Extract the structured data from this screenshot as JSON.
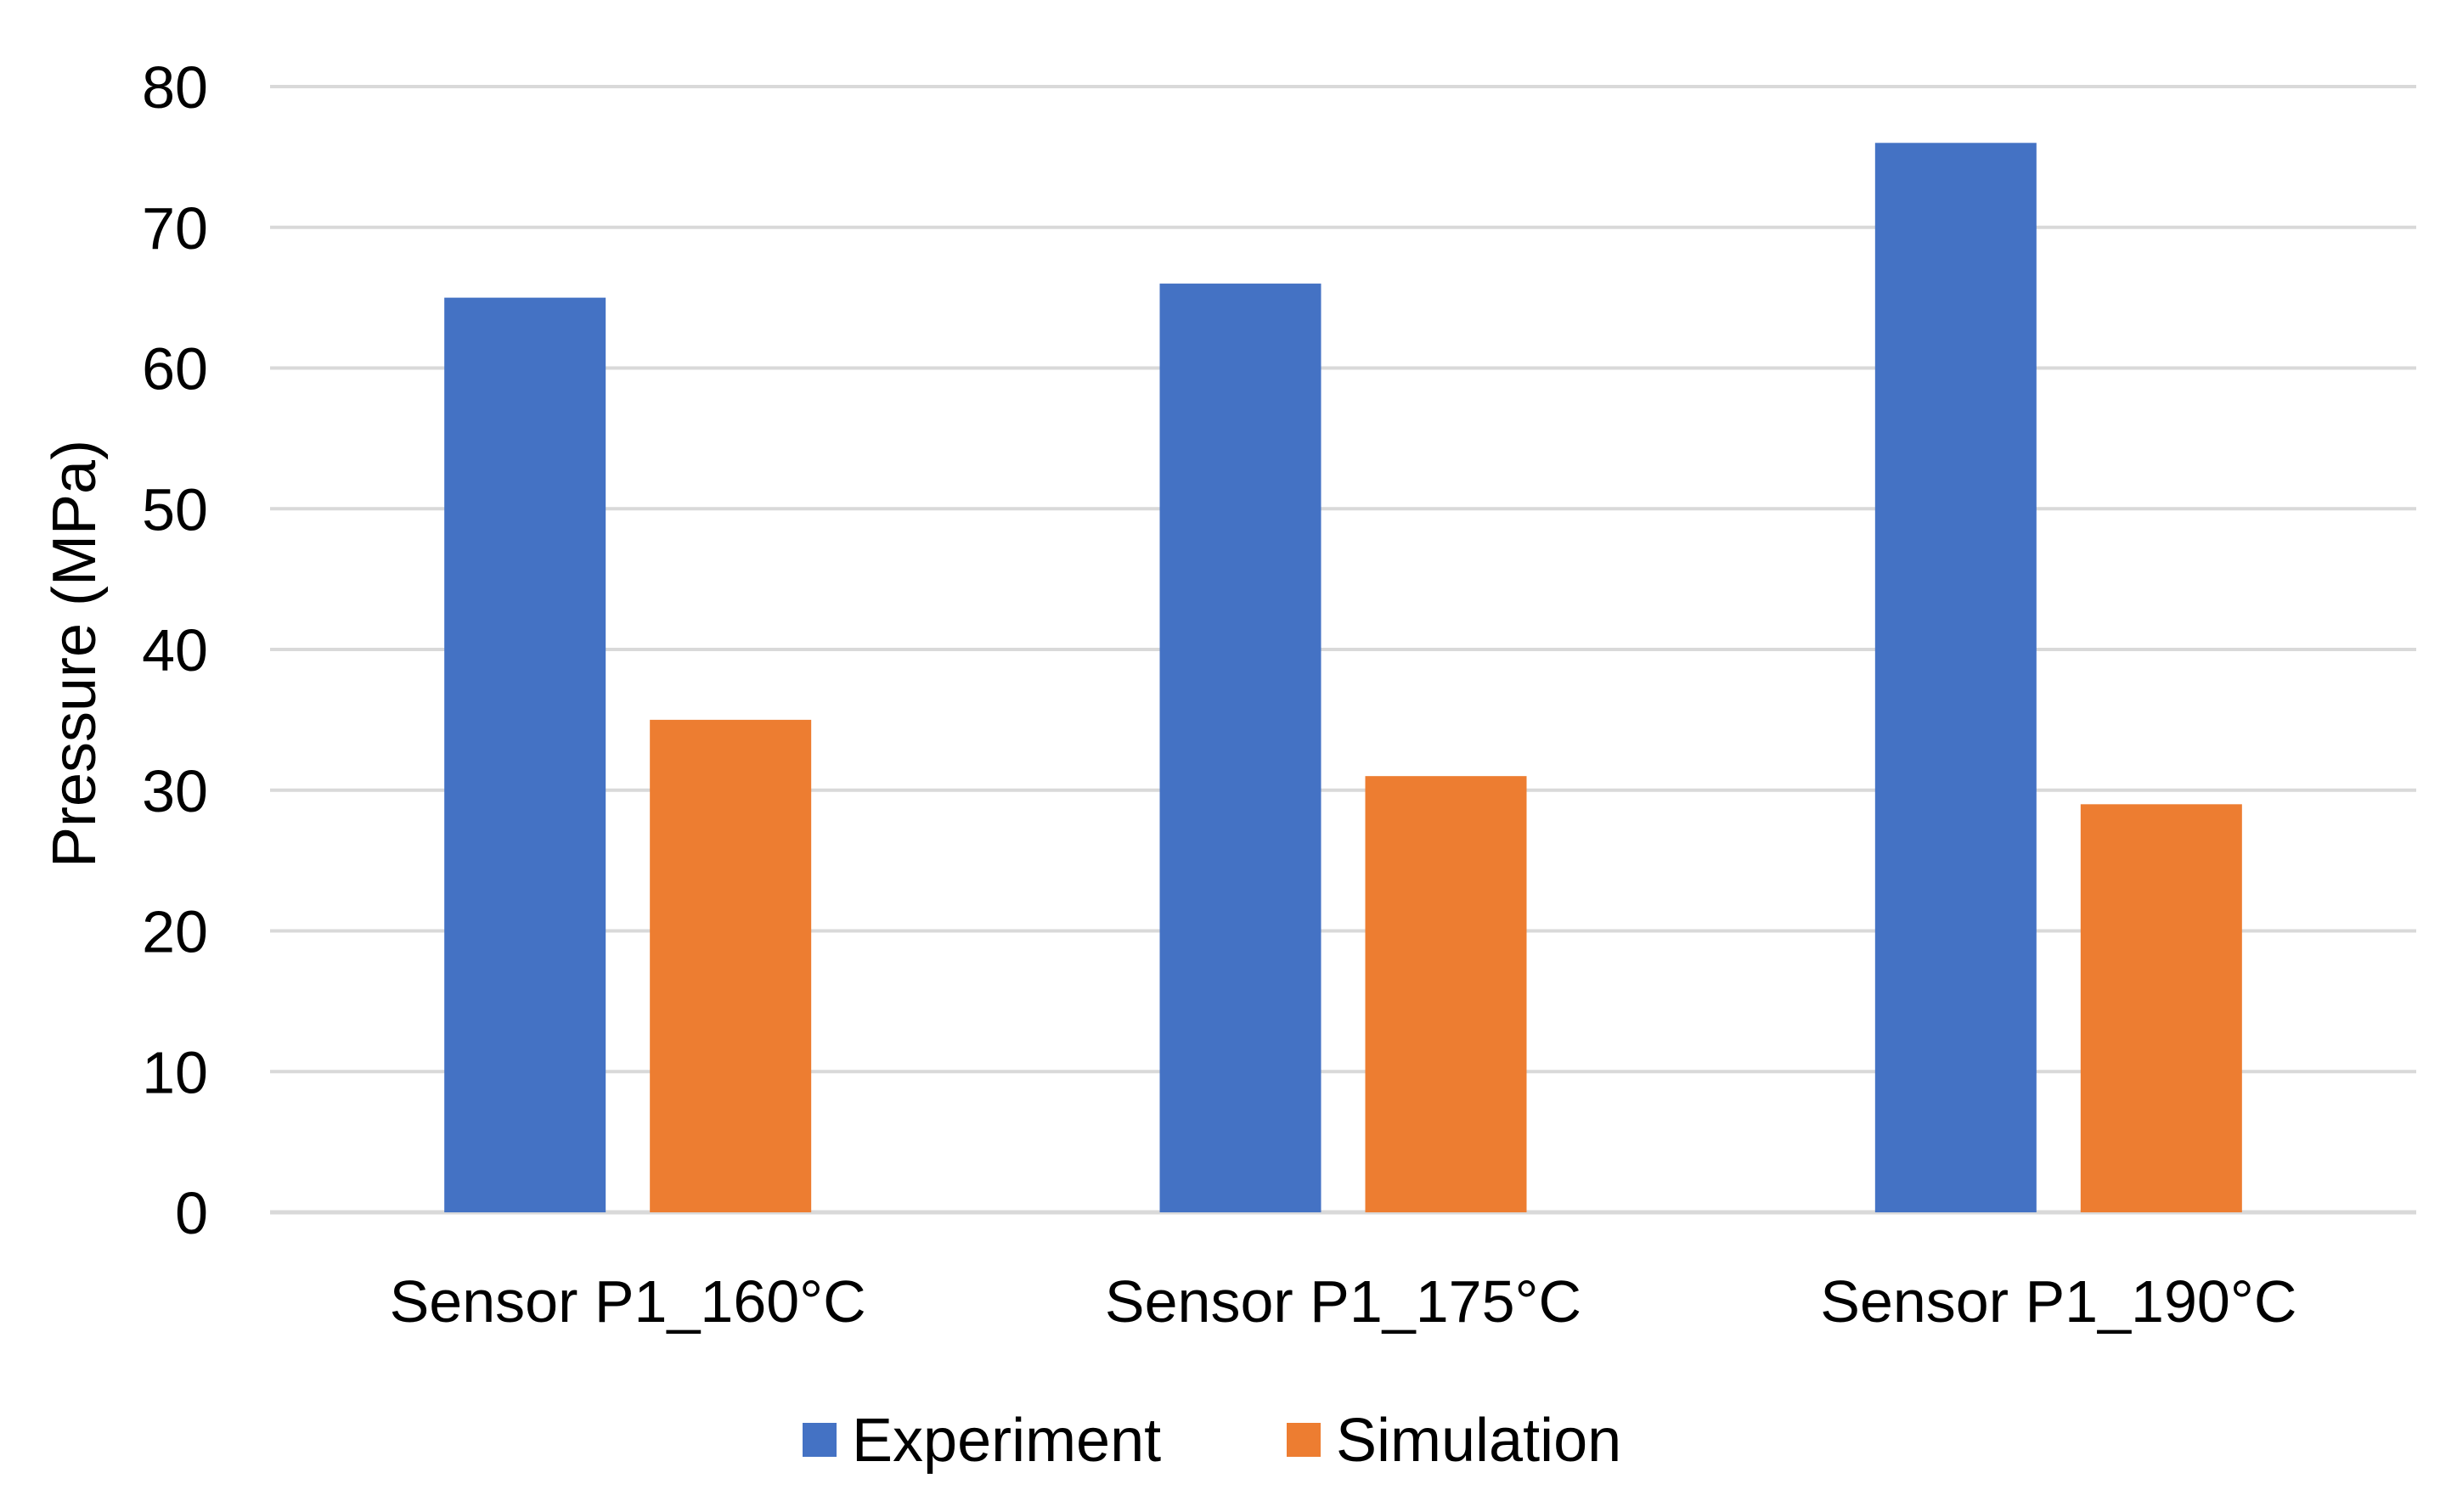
{
  "chart_data": {
    "type": "bar",
    "title": "",
    "xlabel": "",
    "ylabel": "Pressure (MPa)",
    "ylim": [
      0,
      80
    ],
    "yticks": [
      0,
      10,
      20,
      30,
      40,
      50,
      60,
      70,
      80
    ],
    "grid": true,
    "legend_position": "bottom",
    "categories": [
      "Sensor P1_160°C",
      "Sensor P1_175°C",
      "Sensor P1_190°C"
    ],
    "series": [
      {
        "name": "Experiment",
        "color": "#4472C4",
        "values": [
          65,
          66,
          76
        ]
      },
      {
        "name": "Simulation",
        "color": "#ED7D31",
        "values": [
          35,
          31,
          29
        ]
      }
    ]
  }
}
